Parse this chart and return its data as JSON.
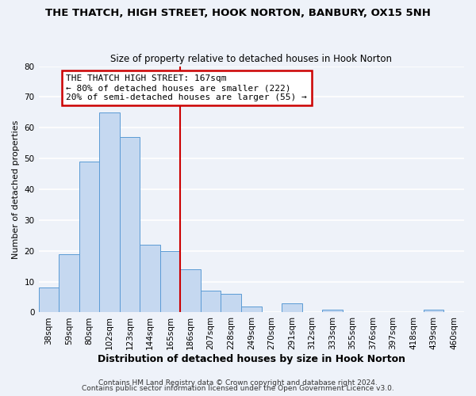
{
  "title": "THE THATCH, HIGH STREET, HOOK NORTON, BANBURY, OX15 5NH",
  "subtitle": "Size of property relative to detached houses in Hook Norton",
  "xlabel": "Distribution of detached houses by size in Hook Norton",
  "ylabel": "Number of detached properties",
  "bin_labels": [
    "38sqm",
    "59sqm",
    "80sqm",
    "102sqm",
    "123sqm",
    "144sqm",
    "165sqm",
    "186sqm",
    "207sqm",
    "228sqm",
    "249sqm",
    "270sqm",
    "291sqm",
    "312sqm",
    "333sqm",
    "355sqm",
    "376sqm",
    "397sqm",
    "418sqm",
    "439sqm",
    "460sqm"
  ],
  "bar_heights": [
    8,
    19,
    49,
    65,
    57,
    22,
    20,
    14,
    7,
    6,
    2,
    0,
    3,
    0,
    1,
    0,
    0,
    0,
    0,
    1,
    0
  ],
  "bar_color": "#c5d8f0",
  "bar_edge_color": "#5b9bd5",
  "vline_color": "#cc0000",
  "annotation_text": "THE THATCH HIGH STREET: 167sqm\n← 80% of detached houses are smaller (222)\n20% of semi-detached houses are larger (55) →",
  "annotation_box_color": "#ffffff",
  "annotation_box_edge_color": "#cc0000",
  "footer_line1": "Contains HM Land Registry data © Crown copyright and database right 2024.",
  "footer_line2": "Contains public sector information licensed under the Open Government Licence v3.0.",
  "ylim": [
    0,
    80
  ],
  "yticks": [
    0,
    10,
    20,
    30,
    40,
    50,
    60,
    70,
    80
  ],
  "background_color": "#eef2f9",
  "grid_color": "#ffffff",
  "title_fontsize": 9.5,
  "subtitle_fontsize": 8.5,
  "ylabel_fontsize": 8,
  "xlabel_fontsize": 9,
  "tick_fontsize": 7.5,
  "footer_fontsize": 6.5
}
